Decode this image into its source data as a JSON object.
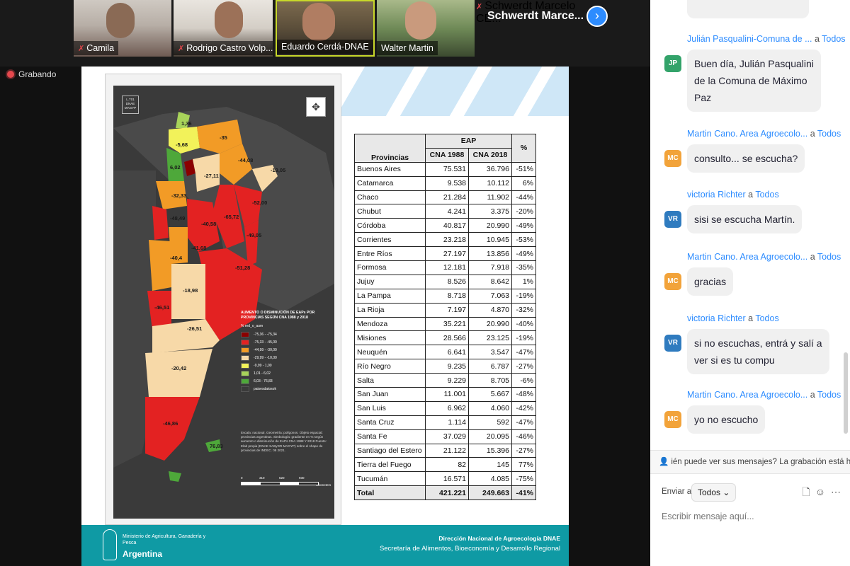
{
  "participants": [
    {
      "name": "Camila",
      "muted": true
    },
    {
      "name": "Rodrigo Castro Volp...",
      "muted": true
    },
    {
      "name": "Eduardo Cerdá-DNAE",
      "muted": false
    },
    {
      "name": "Walter Martin",
      "muted": false
    },
    {
      "name": "Schwerdt Marcelo CE...",
      "muted": true
    }
  ],
  "active_tile_title": "Schwerdt Marce...",
  "next_icon": "›",
  "mute_icon": "✗",
  "recording_label": "Grabando",
  "slide": {
    "map": {
      "code_box": "L.T01 DNAE MAGYP",
      "compass_icon": "✥",
      "labels": [
        "1,36",
        "-5,68",
        "-35",
        "6,02",
        "-27,11",
        "-44,08",
        "-19,05",
        "-52,00",
        "-32,33",
        "-48,49",
        "-65,72",
        "-40,58",
        "-49,05",
        "-40,4",
        "-41,68",
        "-51,28",
        "-18,98",
        "-46,51",
        "-26,51",
        "-20,42",
        "-46,86",
        "76,83"
      ],
      "legend_title": "AUMENTO O DISMINUCIÓN DE EAPs POR PROVINCIAS SEGÚN CNA 1988 y 2018",
      "legend_field": "% red_o_aum",
      "legend_items": [
        {
          "label": "-75,36 - -75,34",
          "color": "#8b0000"
        },
        {
          "label": "-75,33 - -45,00",
          "color": "#e32222"
        },
        {
          "label": "-44,99 - -30,00",
          "color": "#f29b26"
        },
        {
          "label": "-29,99 - -10,00",
          "color": "#f7d9a8"
        },
        {
          "label": "-9,99 - 1,00",
          "color": "#f2f25a"
        },
        {
          "label": "1,01 - 6,02",
          "color": "#a8d35a"
        },
        {
          "label": "6,03 - 76,83",
          "color": "#4ea83a"
        },
        {
          "label": "paisesdatosok",
          "color": "#3a3a3a"
        }
      ],
      "notes": "Escala: nacional. Geometría: polígonos. Objeto espacial: provincias argentinas. Simbología: gradiente en % según aumento o disminución de EAPs CNA 1988 Y 2018 Fuente: Elab propia (DNAE SAByDR MAGYP) sobre el shape de provincias de INDEC. 08 2021.",
      "scale_labels": [
        "0",
        "310",
        "620",
        "930",
        "Kilometers"
      ]
    },
    "table": {
      "group_header": "EAP",
      "headers": [
        "Provincias",
        "CNA 1988",
        "CNA 2018",
        "%"
      ],
      "rows": [
        [
          "Buenos Aires",
          "75.531",
          "36.796",
          "-51%"
        ],
        [
          "Catamarca",
          "9.538",
          "10.112",
          "6%"
        ],
        [
          "Chaco",
          "21.284",
          "11.902",
          "-44%"
        ],
        [
          "Chubut",
          "4.241",
          "3.375",
          "-20%"
        ],
        [
          "Córdoba",
          "40.817",
          "20.990",
          "-49%"
        ],
        [
          "Corrientes",
          "23.218",
          "10.945",
          "-53%"
        ],
        [
          "Entre Ríos",
          "27.197",
          "13.856",
          "-49%"
        ],
        [
          "Formosa",
          "12.181",
          "7.918",
          "-35%"
        ],
        [
          "Jujuy",
          "8.526",
          "8.642",
          "1%"
        ],
        [
          "La Pampa",
          "8.718",
          "7.063",
          "-19%"
        ],
        [
          "La Rioja",
          "7.197",
          "4.870",
          "-32%"
        ],
        [
          "Mendoza",
          "35.221",
          "20.990",
          "-40%"
        ],
        [
          "Misiones",
          "28.566",
          "23.125",
          "-19%"
        ],
        [
          "Neuquén",
          "6.641",
          "3.547",
          "-47%"
        ],
        [
          "Río Negro",
          "9.235",
          "6.787",
          "-27%"
        ],
        [
          "Salta",
          "9.229",
          "8.705",
          "-6%"
        ],
        [
          "San Juan",
          "11.001",
          "5.667",
          "-48%"
        ],
        [
          "San Luis",
          "6.962",
          "4.060",
          "-42%"
        ],
        [
          "Santa Cruz",
          "1.114",
          "592",
          "-47%"
        ],
        [
          "Santa Fe",
          "37.029",
          "20.095",
          "-46%"
        ],
        [
          "Santiago del Estero",
          "21.122",
          "15.396",
          "-27%"
        ],
        [
          "Tierra del Fuego",
          "82",
          "145",
          "77%"
        ],
        [
          "Tucumán",
          "16.571",
          "4.085",
          "-75%"
        ]
      ],
      "total": [
        "Total",
        "421.221",
        "249.663",
        "-41%"
      ]
    },
    "footer": {
      "ministry": "Ministerio de Agricultura, Ganadería y Pesca",
      "country": "Argentina",
      "dnae": "Dirección Nacional de Agroecología DNAE",
      "secretaria": "Secretaría de Alimentos, Bioeconomía y Desarrollo Regional"
    }
  },
  "chat": {
    "messages": [
      {
        "sender": "Julián Pasqualini-Comuna de ...",
        "to": "a",
        "recipient": "Todos",
        "initials": "JP",
        "avatar_color": "#33a36a",
        "text": [
          "Buen día, Julián Pasqualini",
          "de la Comuna de Máximo",
          "Paz"
        ]
      },
      {
        "sender": "Martin Cano. Area Agroecolo...",
        "to": "a",
        "recipient": "Todos",
        "initials": "MC",
        "avatar_color": "#f2a33a",
        "text": [
          "consulto... se escucha?"
        ]
      },
      {
        "sender": "victoria Richter",
        "to": "a",
        "recipient": "Todos",
        "initials": "VR",
        "avatar_color": "#2f7bbf",
        "text": [
          "sisi se escucha Martín."
        ]
      },
      {
        "sender": "Martin Cano. Area Agroecolo...",
        "to": "a",
        "recipient": "Todos",
        "initials": "MC",
        "avatar_color": "#f2a33a",
        "text": [
          "gracias"
        ]
      },
      {
        "sender": "victoria Richter",
        "to": "a",
        "recipient": "Todos",
        "initials": "VR",
        "avatar_color": "#2f7bbf",
        "text": [
          "si no escuchas, entrá y salí a",
          "ver si es tu compu"
        ]
      },
      {
        "sender": "Martin Cano. Area Agroecolo...",
        "to": "a",
        "recipient": "Todos",
        "initials": "MC",
        "avatar_color": "#f2a33a",
        "text": [
          "yo no escucho"
        ]
      }
    ],
    "notice": "ién puede ver sus mensajes? La grabación está habilit",
    "notice_icon": "person-icon",
    "send_to_label": "Enviar a:",
    "recipient_select": "Todos",
    "recipient_chevron": "⌄",
    "file_icon": "🗋",
    "emoji_icon": "☺",
    "more_icon": "⋯",
    "input_placeholder": "Escribir mensaje aquí..."
  }
}
